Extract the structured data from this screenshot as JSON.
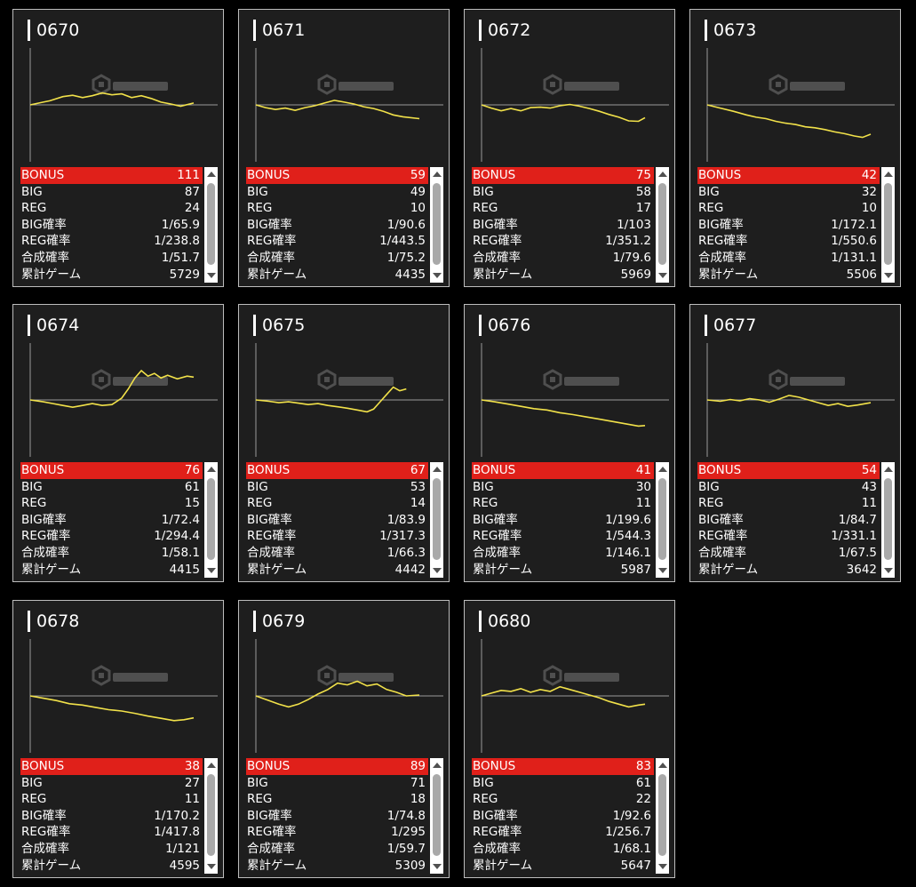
{
  "stat_labels": {
    "bonus": "BONUS",
    "big": "BIG",
    "reg": "REG",
    "big_rate": "BIG確率",
    "reg_rate": "REG確率",
    "total_rate": "合成確率",
    "games": "累計ゲーム"
  },
  "colors": {
    "background": "#000000",
    "card": "#1e1e1e",
    "bonus_row": "#e0201a",
    "line": "#f2e24a"
  },
  "icons": {
    "watermark": "ps-cube-logo-icon",
    "scroll_up": "scroll-up-arrow-icon",
    "scroll_down": "scroll-down-arrow-icon"
  },
  "machines": [
    {
      "number": "0670",
      "bonus": "111",
      "big": "87",
      "reg": "24",
      "big_rate": "1/65.9",
      "reg_rate": "1/238.8",
      "total_rate": "1/51.7",
      "games": "5729",
      "slump": [
        [
          0,
          0
        ],
        [
          8,
          300
        ],
        [
          12,
          450
        ],
        [
          20,
          900
        ],
        [
          26,
          1050
        ],
        [
          32,
          800
        ],
        [
          38,
          1000
        ],
        [
          44,
          1300
        ],
        [
          50,
          1100
        ],
        [
          56,
          1200
        ],
        [
          62,
          800
        ],
        [
          68,
          1000
        ],
        [
          74,
          700
        ],
        [
          80,
          300
        ],
        [
          86,
          100
        ],
        [
          92,
          -150
        ],
        [
          100,
          200
        ]
      ]
    },
    {
      "number": "0671",
      "bonus": "59",
      "big": "49",
      "reg": "10",
      "big_rate": "1/90.6",
      "reg_rate": "1/443.5",
      "total_rate": "1/75.2",
      "games": "4435",
      "slump": [
        [
          0,
          0
        ],
        [
          6,
          -300
        ],
        [
          12,
          -500
        ],
        [
          18,
          -350
        ],
        [
          24,
          -600
        ],
        [
          30,
          -300
        ],
        [
          36,
          -100
        ],
        [
          42,
          200
        ],
        [
          48,
          500
        ],
        [
          54,
          300
        ],
        [
          60,
          100
        ],
        [
          66,
          -200
        ],
        [
          72,
          -400
        ],
        [
          78,
          -700
        ],
        [
          84,
          -1100
        ],
        [
          90,
          -1300
        ],
        [
          100,
          -1500
        ]
      ]
    },
    {
      "number": "0672",
      "bonus": "75",
      "big": "58",
      "reg": "17",
      "big_rate": "1/103",
      "reg_rate": "1/351.2",
      "total_rate": "1/79.6",
      "games": "5969",
      "slump": [
        [
          0,
          0
        ],
        [
          6,
          -350
        ],
        [
          12,
          -650
        ],
        [
          18,
          -400
        ],
        [
          24,
          -650
        ],
        [
          30,
          -300
        ],
        [
          36,
          -250
        ],
        [
          42,
          -350
        ],
        [
          48,
          -100
        ],
        [
          54,
          50
        ],
        [
          60,
          -150
        ],
        [
          66,
          -400
        ],
        [
          72,
          -700
        ],
        [
          78,
          -1050
        ],
        [
          84,
          -1350
        ],
        [
          90,
          -1750
        ],
        [
          96,
          -1800
        ],
        [
          100,
          -1400
        ]
      ]
    },
    {
      "number": "0673",
      "bonus": "42",
      "big": "32",
      "reg": "10",
      "big_rate": "1/172.1",
      "reg_rate": "1/550.6",
      "total_rate": "1/131.1",
      "games": "5506",
      "slump": [
        [
          0,
          0
        ],
        [
          8,
          -350
        ],
        [
          16,
          -700
        ],
        [
          24,
          -1100
        ],
        [
          30,
          -1350
        ],
        [
          36,
          -1500
        ],
        [
          42,
          -1800
        ],
        [
          48,
          -2000
        ],
        [
          54,
          -2150
        ],
        [
          60,
          -2400
        ],
        [
          66,
          -2500
        ],
        [
          72,
          -2700
        ],
        [
          78,
          -2950
        ],
        [
          84,
          -3150
        ],
        [
          90,
          -3400
        ],
        [
          95,
          -3550
        ],
        [
          100,
          -3200
        ]
      ]
    },
    {
      "number": "0674",
      "bonus": "76",
      "big": "61",
      "reg": "15",
      "big_rate": "1/72.4",
      "reg_rate": "1/294.4",
      "total_rate": "1/58.1",
      "games": "4415",
      "slump": [
        [
          0,
          0
        ],
        [
          8,
          -200
        ],
        [
          14,
          -400
        ],
        [
          20,
          -600
        ],
        [
          26,
          -800
        ],
        [
          32,
          -600
        ],
        [
          38,
          -400
        ],
        [
          44,
          -600
        ],
        [
          50,
          -500
        ],
        [
          56,
          200
        ],
        [
          60,
          1200
        ],
        [
          64,
          2400
        ],
        [
          68,
          3200
        ],
        [
          72,
          2600
        ],
        [
          76,
          2900
        ],
        [
          80,
          2400
        ],
        [
          84,
          2700
        ],
        [
          90,
          2300
        ],
        [
          96,
          2600
        ],
        [
          100,
          2500
        ]
      ]
    },
    {
      "number": "0675",
      "bonus": "67",
      "big": "53",
      "reg": "14",
      "big_rate": "1/83.9",
      "reg_rate": "1/317.3",
      "total_rate": "1/66.3",
      "games": "4442",
      "slump": [
        [
          0,
          0
        ],
        [
          8,
          -150
        ],
        [
          14,
          -300
        ],
        [
          20,
          -200
        ],
        [
          26,
          -350
        ],
        [
          32,
          -500
        ],
        [
          38,
          -400
        ],
        [
          44,
          -600
        ],
        [
          50,
          -750
        ],
        [
          56,
          -900
        ],
        [
          62,
          -1100
        ],
        [
          68,
          -1300
        ],
        [
          72,
          -1000
        ],
        [
          76,
          -200
        ],
        [
          80,
          600
        ],
        [
          84,
          1400
        ],
        [
          88,
          1000
        ],
        [
          92,
          1200
        ]
      ]
    },
    {
      "number": "0676",
      "bonus": "41",
      "big": "30",
      "reg": "11",
      "big_rate": "1/199.6",
      "reg_rate": "1/544.3",
      "total_rate": "1/146.1",
      "games": "5987",
      "slump": [
        [
          0,
          0
        ],
        [
          8,
          -200
        ],
        [
          16,
          -450
        ],
        [
          24,
          -700
        ],
        [
          32,
          -950
        ],
        [
          40,
          -1100
        ],
        [
          48,
          -1400
        ],
        [
          56,
          -1600
        ],
        [
          64,
          -1850
        ],
        [
          72,
          -2100
        ],
        [
          80,
          -2350
        ],
        [
          88,
          -2600
        ],
        [
          96,
          -2850
        ],
        [
          100,
          -2800
        ]
      ]
    },
    {
      "number": "0677",
      "bonus": "54",
      "big": "43",
      "reg": "11",
      "big_rate": "1/84.7",
      "reg_rate": "1/331.1",
      "total_rate": "1/67.5",
      "games": "3642",
      "slump": [
        [
          0,
          0
        ],
        [
          8,
          -150
        ],
        [
          14,
          50
        ],
        [
          20,
          -100
        ],
        [
          26,
          150
        ],
        [
          32,
          0
        ],
        [
          38,
          -250
        ],
        [
          44,
          100
        ],
        [
          50,
          500
        ],
        [
          56,
          300
        ],
        [
          62,
          0
        ],
        [
          68,
          -300
        ],
        [
          74,
          -600
        ],
        [
          80,
          -400
        ],
        [
          86,
          -700
        ],
        [
          92,
          -550
        ],
        [
          100,
          -300
        ]
      ]
    },
    {
      "number": "0678",
      "bonus": "38",
      "big": "27",
      "reg": "11",
      "big_rate": "1/170.2",
      "reg_rate": "1/417.8",
      "total_rate": "1/121",
      "games": "4595",
      "slump": [
        [
          0,
          0
        ],
        [
          8,
          -250
        ],
        [
          16,
          -500
        ],
        [
          24,
          -850
        ],
        [
          32,
          -1000
        ],
        [
          40,
          -1250
        ],
        [
          48,
          -1500
        ],
        [
          56,
          -1650
        ],
        [
          64,
          -1900
        ],
        [
          72,
          -2200
        ],
        [
          80,
          -2450
        ],
        [
          88,
          -2700
        ],
        [
          94,
          -2600
        ],
        [
          100,
          -2400
        ]
      ]
    },
    {
      "number": "0679",
      "bonus": "89",
      "big": "71",
      "reg": "18",
      "big_rate": "1/74.8",
      "reg_rate": "1/295",
      "total_rate": "1/59.7",
      "games": "5309",
      "slump": [
        [
          0,
          0
        ],
        [
          8,
          -500
        ],
        [
          14,
          -900
        ],
        [
          20,
          -1200
        ],
        [
          26,
          -900
        ],
        [
          32,
          -400
        ],
        [
          38,
          200
        ],
        [
          44,
          700
        ],
        [
          50,
          1400
        ],
        [
          56,
          1200
        ],
        [
          62,
          1600
        ],
        [
          68,
          1100
        ],
        [
          74,
          1300
        ],
        [
          80,
          700
        ],
        [
          86,
          400
        ],
        [
          92,
          0
        ],
        [
          100,
          100
        ]
      ]
    },
    {
      "number": "0680",
      "bonus": "83",
      "big": "61",
      "reg": "22",
      "big_rate": "1/92.6",
      "reg_rate": "1/256.7",
      "total_rate": "1/68.1",
      "games": "5647",
      "slump": [
        [
          0,
          0
        ],
        [
          6,
          300
        ],
        [
          12,
          600
        ],
        [
          18,
          500
        ],
        [
          24,
          800
        ],
        [
          30,
          400
        ],
        [
          36,
          700
        ],
        [
          42,
          500
        ],
        [
          48,
          1000
        ],
        [
          54,
          700
        ],
        [
          60,
          400
        ],
        [
          66,
          100
        ],
        [
          72,
          -200
        ],
        [
          78,
          -600
        ],
        [
          84,
          -900
        ],
        [
          90,
          -1200
        ],
        [
          96,
          -1000
        ],
        [
          100,
          -900
        ]
      ]
    }
  ]
}
